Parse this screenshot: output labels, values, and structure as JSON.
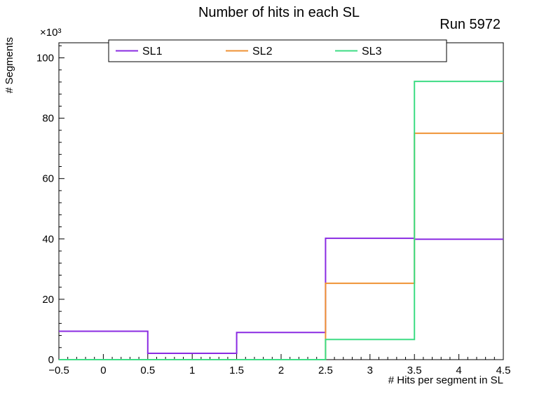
{
  "header": {
    "title": "Number of hits in each SL",
    "run_label": "Run 5972"
  },
  "chart_data": {
    "type": "step-histogram",
    "title": "Number of hits in each SL",
    "xlabel": "# Hits per segment in SL",
    "ylabel": "# Segments",
    "y_multiplier": "×10³",
    "xlim": [
      -0.5,
      4.5
    ],
    "ylim": [
      0,
      105
    ],
    "grid": false,
    "legend_position": "top-inside",
    "bin_edges": [
      -0.5,
      0.5,
      1.5,
      2.5,
      3.5,
      4.5
    ],
    "x_tick_values": [
      -0.5,
      0,
      0.5,
      1,
      1.5,
      2,
      2.5,
      3,
      3.5,
      4,
      4.5
    ],
    "x_tick_labels": [
      "−0.5",
      "0",
      "0.5",
      "1",
      "1.5",
      "2",
      "2.5",
      "3",
      "3.5",
      "4",
      "4.5"
    ],
    "y_tick_values": [
      0,
      20,
      40,
      60,
      80,
      100
    ],
    "y_tick_labels": [
      "0",
      "20",
      "40",
      "60",
      "80",
      "100"
    ],
    "series": [
      {
        "name": "SL1",
        "color": "#8a2be2",
        "values": [
          9.4,
          2.1,
          9.0,
          40.2,
          39.9
        ]
      },
      {
        "name": "SL2",
        "color": "#ef9234",
        "values": [
          0,
          0,
          0,
          25.3,
          75.0
        ]
      },
      {
        "name": "SL3",
        "color": "#3ddc84",
        "values": [
          0,
          0,
          0,
          6.7,
          92.2
        ]
      }
    ]
  }
}
